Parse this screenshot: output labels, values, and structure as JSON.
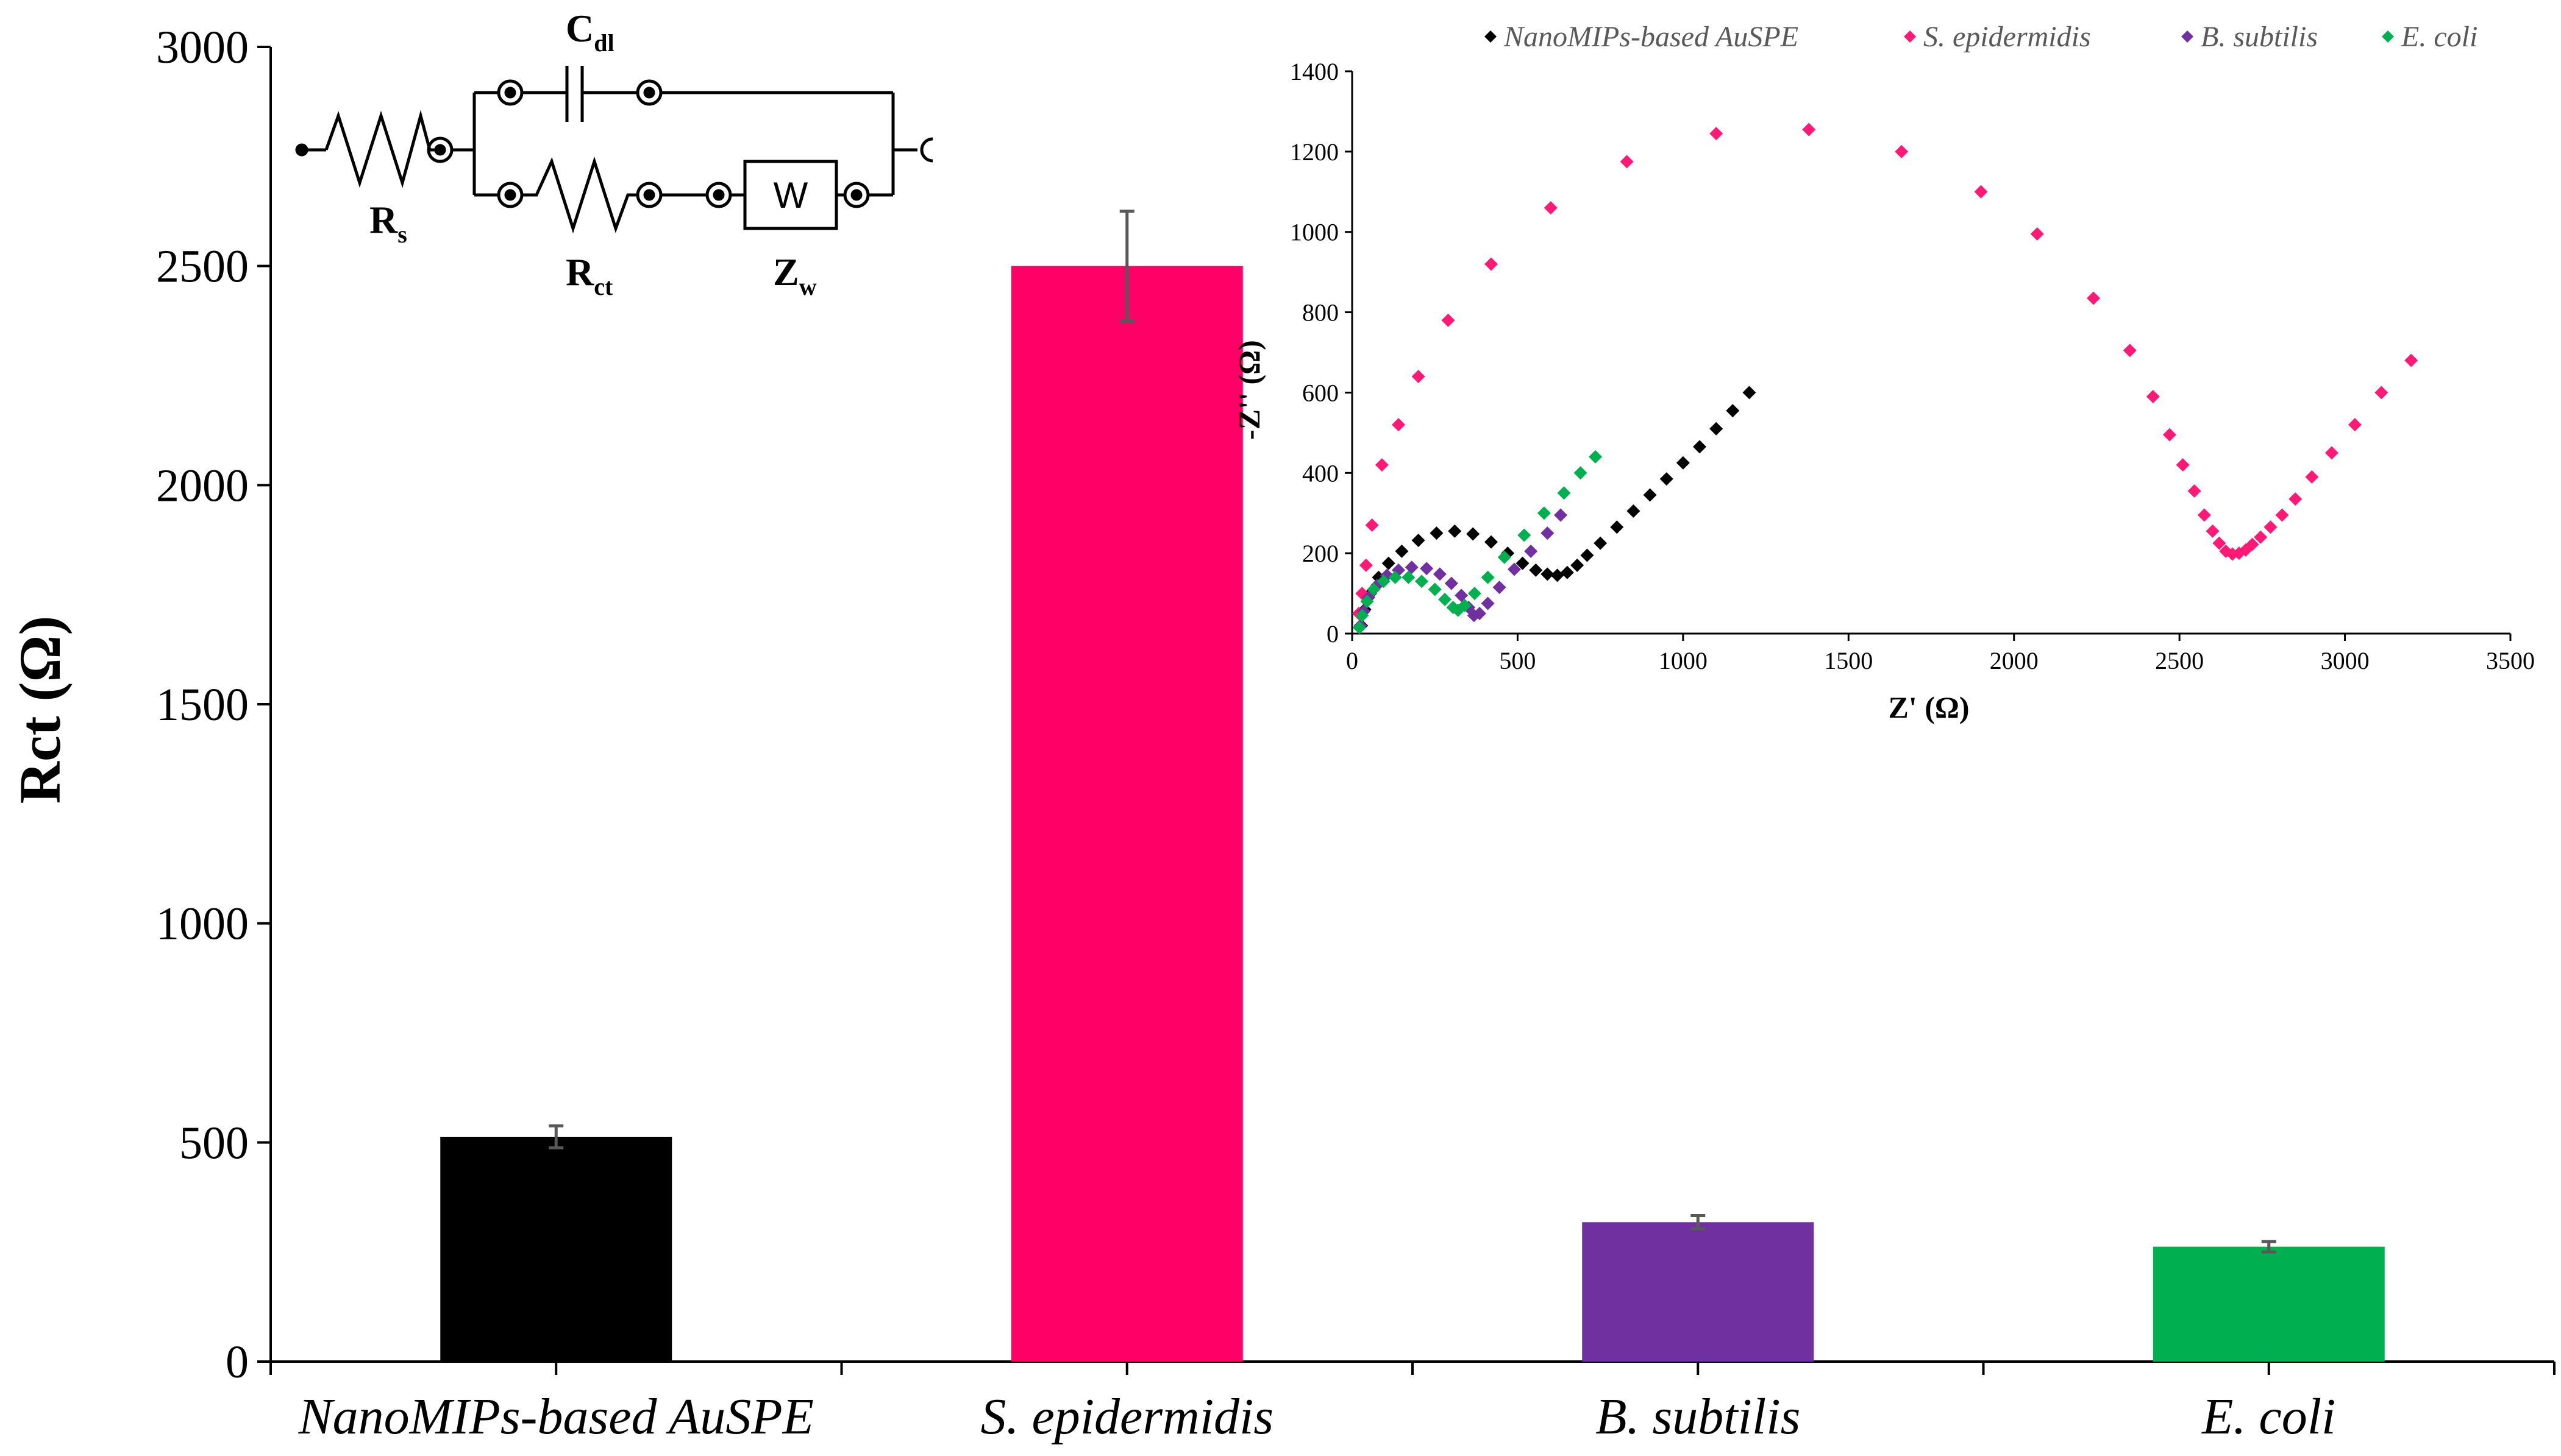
{
  "chart_data": [
    {
      "type": "bar",
      "title": "",
      "xlabel": "",
      "ylabel": "Rct (Ω)",
      "ylim": [
        0,
        3000
      ],
      "yticks": [
        0,
        500,
        1000,
        1500,
        2000,
        2500,
        3000
      ],
      "categories": [
        "NanoMIPs-based AuSPE",
        "S. epidermidis",
        "B. subtilis",
        "E. coli"
      ],
      "values": [
        513,
        2500,
        318,
        262
      ],
      "errors": [
        25,
        125,
        15,
        12
      ],
      "colors": [
        "#000000",
        "#ff0066",
        "#7030a0",
        "#00b050"
      ],
      "grid": false,
      "legend": "none"
    },
    {
      "type": "scatter",
      "title": "",
      "xlabel": "Z' (Ω)",
      "ylabel": "-Z'' (Ω)",
      "xlim": [
        0,
        3500
      ],
      "ylim": [
        0,
        1400
      ],
      "xticks": [
        0,
        500,
        1000,
        1500,
        2000,
        2500,
        3000,
        3500
      ],
      "yticks": [
        0,
        200,
        400,
        600,
        800,
        1000,
        1200,
        1400
      ],
      "legend": "top",
      "grid": false,
      "series": [
        {
          "name": "NanoMIPs-based AuSPE",
          "color": "#000000",
          "x": [
            28,
            38,
            55,
            80,
            110,
            150,
            200,
            255,
            310,
            365,
            420,
            470,
            515,
            555,
            590,
            620,
            650,
            680,
            710,
            750,
            800,
            850,
            900,
            950,
            1000,
            1050,
            1100,
            1150,
            1200
          ],
          "y": [
            20,
            60,
            100,
            140,
            175,
            205,
            232,
            250,
            255,
            248,
            228,
            200,
            175,
            158,
            148,
            145,
            152,
            170,
            195,
            225,
            265,
            305,
            345,
            385,
            425,
            465,
            510,
            555,
            600
          ]
        },
        {
          "name": "S. epidermidis",
          "color": "#ff1a75",
          "x": [
            20,
            30,
            42,
            60,
            90,
            140,
            200,
            290,
            420,
            600,
            830,
            1100,
            1380,
            1660,
            1900,
            2070,
            2240,
            2350,
            2420,
            2470,
            2510,
            2545,
            2575,
            2600,
            2620,
            2640,
            2660,
            2680,
            2700,
            2720,
            2745,
            2775,
            2810,
            2850,
            2900,
            2960,
            3030,
            3110,
            3200
          ],
          "y": [
            50,
            100,
            170,
            270,
            420,
            520,
            640,
            780,
            920,
            1060,
            1175,
            1245,
            1255,
            1200,
            1100,
            995,
            835,
            705,
            590,
            495,
            420,
            355,
            295,
            255,
            225,
            205,
            198,
            200,
            208,
            222,
            240,
            265,
            295,
            335,
            390,
            450,
            520,
            600,
            680
          ]
        },
        {
          "name": "B. subtilis",
          "color": "#7030a0",
          "x": [
            25,
            35,
            50,
            75,
            105,
            140,
            180,
            225,
            265,
            300,
            330,
            352,
            368,
            385,
            410,
            445,
            490,
            540,
            590,
            630
          ],
          "y": [
            20,
            55,
            90,
            120,
            145,
            158,
            165,
            162,
            148,
            125,
            95,
            65,
            45,
            50,
            75,
            115,
            160,
            205,
            250,
            295
          ]
        },
        {
          "name": "E. coli",
          "color": "#00b050",
          "x": [
            22,
            30,
            45,
            65,
            95,
            130,
            170,
            210,
            250,
            280,
            305,
            320,
            340,
            370,
            410,
            460,
            520,
            580,
            640,
            690,
            735
          ],
          "y": [
            15,
            45,
            80,
            110,
            130,
            140,
            140,
            130,
            110,
            85,
            65,
            58,
            70,
            100,
            140,
            190,
            245,
            300,
            350,
            400,
            440
          ]
        }
      ]
    }
  ],
  "circuit": {
    "rs_main": "R",
    "rs_sub": "s",
    "cdl_main": "C",
    "cdl_sub": "dl",
    "rct_main": "R",
    "rct_sub": "ct",
    "zw_main": "Z",
    "zw_sub": "w",
    "warburg_box": "W"
  }
}
